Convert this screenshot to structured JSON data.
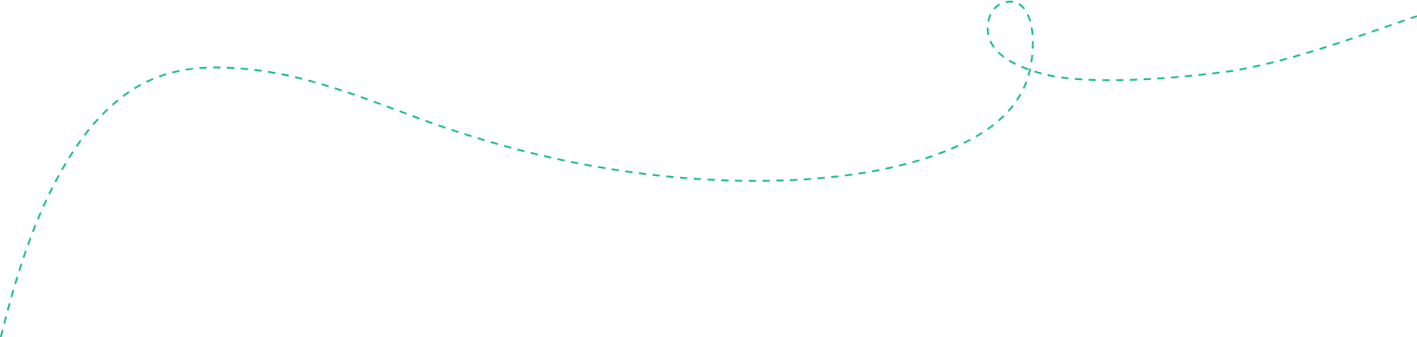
{
  "decoration": {
    "type": "dashed-curve",
    "stroke_color": "#16bd8b",
    "background_color": "#ffffff"
  }
}
